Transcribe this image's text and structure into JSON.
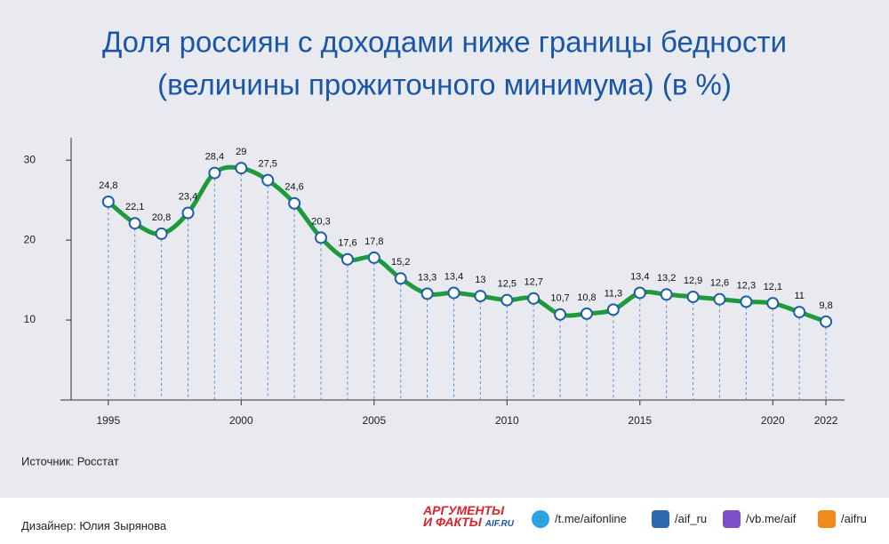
{
  "chart_data": {
    "type": "line",
    "title": [
      "Доля россиян с доходами ниже границы бедности",
      "(величины прожиточного минимума) (в %)"
    ],
    "x": [
      1995,
      1996,
      1997,
      1998,
      1999,
      2000,
      2001,
      2002,
      2003,
      2004,
      2005,
      2006,
      2007,
      2008,
      2009,
      2010,
      2011,
      2012,
      2013,
      2014,
      2015,
      2016,
      2017,
      2018,
      2019,
      2020,
      2021,
      2022
    ],
    "values": [
      24.8,
      22.1,
      20.8,
      23.4,
      28.4,
      29,
      27.5,
      24.6,
      20.3,
      17.6,
      17.8,
      15.2,
      13.3,
      13.4,
      13,
      12.5,
      12.7,
      10.7,
      10.8,
      11.3,
      13.4,
      13.2,
      12.9,
      12.6,
      12.3,
      12.1,
      11,
      9.8
    ],
    "value_labels": [
      "24,8",
      "22,1",
      "20,8",
      "23,4",
      "28,4",
      "29",
      "27,5",
      "24,6",
      "20,3",
      "17,6",
      "17,8",
      "15,2",
      "13,3",
      "13,4",
      "13",
      "12,5",
      "12,7",
      "10,7",
      "10,8",
      "11,3",
      "13,4",
      "13,2",
      "12,9",
      "12,6",
      "12,3",
      "12,1",
      "11",
      "9,8"
    ],
    "color": "#1e9a3b",
    "marker_color": "#1f5fa8",
    "xlim": [
      1993.2,
      2022.7
    ],
    "xticks": [
      1995,
      2000,
      2005,
      2010,
      2015,
      2020,
      2022
    ],
    "ylim": [
      0,
      32.8
    ],
    "yticks": [
      10,
      20,
      30
    ],
    "source": "Источник: Росстат"
  },
  "footer": {
    "designer": "Дизайнер: Юлия Зырянова",
    "logo": [
      "АРГУМЕНТЫ",
      "И ФАКТЫ",
      "AIF.RU"
    ],
    "links": [
      "/t.me/aifonline",
      "/aif_ru",
      "/vb.me/aif",
      "/aifru"
    ]
  }
}
